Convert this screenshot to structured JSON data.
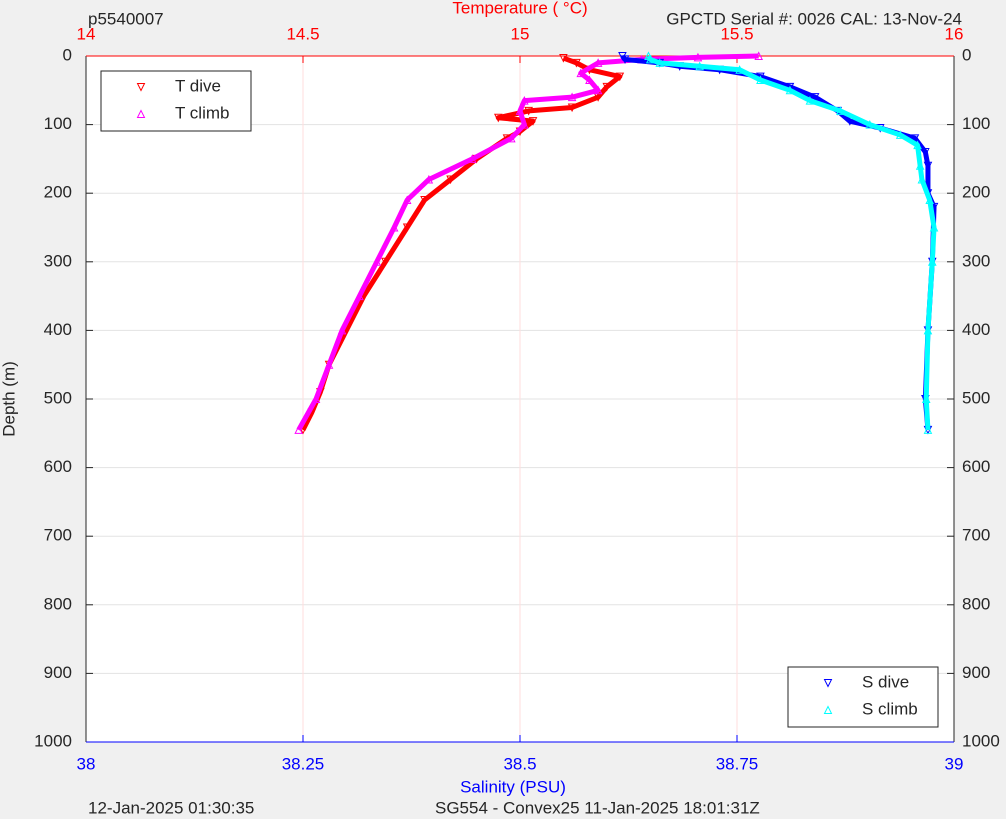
{
  "chart_data": {
    "type": "profile",
    "title_left": "p5540007",
    "title_right": "GPCTD Serial #: 0026 CAL: 13-Nov-24",
    "x2label": "Temperature (    °C)",
    "xlabel": "Salinity (PSU)",
    "ylabel": "Depth (m)",
    "footer_left": "12-Jan-2025 01:30:35",
    "footer_center": "SG554 - Convex25 11-Jan-2025 18:01:31Z",
    "xlim": [
      38,
      39
    ],
    "xticks": [
      38,
      38.25,
      38.5,
      38.75,
      39
    ],
    "xcolor": "#0000ff",
    "x2lim": [
      14,
      16
    ],
    "x2ticks": [
      14,
      14.5,
      15,
      15.5,
      16
    ],
    "x2color": "#ff0000",
    "ylim": [
      0,
      1000
    ],
    "yticks": [
      0,
      100,
      200,
      300,
      400,
      500,
      600,
      700,
      800,
      900,
      1000
    ],
    "y_reversed": true,
    "grid": true,
    "series": [
      {
        "name": "T dive",
        "color": "#ff0000",
        "marker": "v",
        "axis": "x2",
        "legend_loc": "upper left",
        "x": [
          14.5,
          14.52,
          14.54,
          14.56,
          14.6,
          14.64,
          14.69,
          14.74,
          14.78,
          14.84,
          14.9,
          14.97,
          15.0,
          15.03,
          14.95,
          15.02,
          15.12,
          15.18,
          15.2,
          15.23,
          15.16,
          15.13,
          15.1
        ],
        "values": [
          545,
          520,
          490,
          450,
          400,
          350,
          300,
          250,
          210,
          180,
          150,
          120,
          110,
          95,
          90,
          80,
          75,
          60,
          45,
          30,
          20,
          10,
          3
        ]
      },
      {
        "name": "T climb",
        "color": "#ff00ff",
        "marker": "^",
        "axis": "x2",
        "legend_loc": "upper left",
        "x": [
          14.49,
          14.53,
          14.56,
          14.59,
          14.63,
          14.67,
          14.71,
          14.74,
          14.79,
          14.89,
          14.98,
          15.01,
          15.0,
          15.01,
          15.12,
          15.18,
          15.16,
          15.14,
          15.18,
          15.28,
          15.41,
          15.55
        ],
        "values": [
          545,
          500,
          450,
          400,
          350,
          300,
          250,
          210,
          180,
          150,
          120,
          100,
          80,
          65,
          60,
          50,
          35,
          25,
          10,
          5,
          2,
          0
        ]
      },
      {
        "name": "S dive",
        "color": "#0000ff",
        "marker": "v",
        "axis": "x",
        "legend_loc": "lower right",
        "x": [
          38.97,
          38.967,
          38.97,
          38.975,
          38.977,
          38.97,
          38.97,
          38.967,
          38.955,
          38.915,
          38.88,
          38.866,
          38.84,
          38.811,
          38.777,
          38.73,
          38.684,
          38.661,
          38.621,
          38.618
        ],
        "values": [
          545,
          500,
          400,
          300,
          220,
          200,
          160,
          140,
          120,
          105,
          95,
          80,
          60,
          45,
          30,
          20,
          15,
          10,
          5,
          0
        ]
      },
      {
        "name": "S climb",
        "color": "#00ffff",
        "marker": "^",
        "axis": "x",
        "legend_loc": "lower right",
        "x": [
          38.97,
          38.968,
          38.97,
          38.975,
          38.977,
          38.972,
          38.963,
          38.961,
          38.958,
          38.938,
          38.903,
          38.869,
          38.834,
          38.811,
          38.777,
          38.753,
          38.707,
          38.661,
          38.65,
          38.648
        ],
        "values": [
          545,
          500,
          400,
          300,
          250,
          210,
          180,
          160,
          130,
          115,
          100,
          80,
          65,
          50,
          35,
          20,
          15,
          10,
          5,
          0
        ]
      }
    ]
  }
}
